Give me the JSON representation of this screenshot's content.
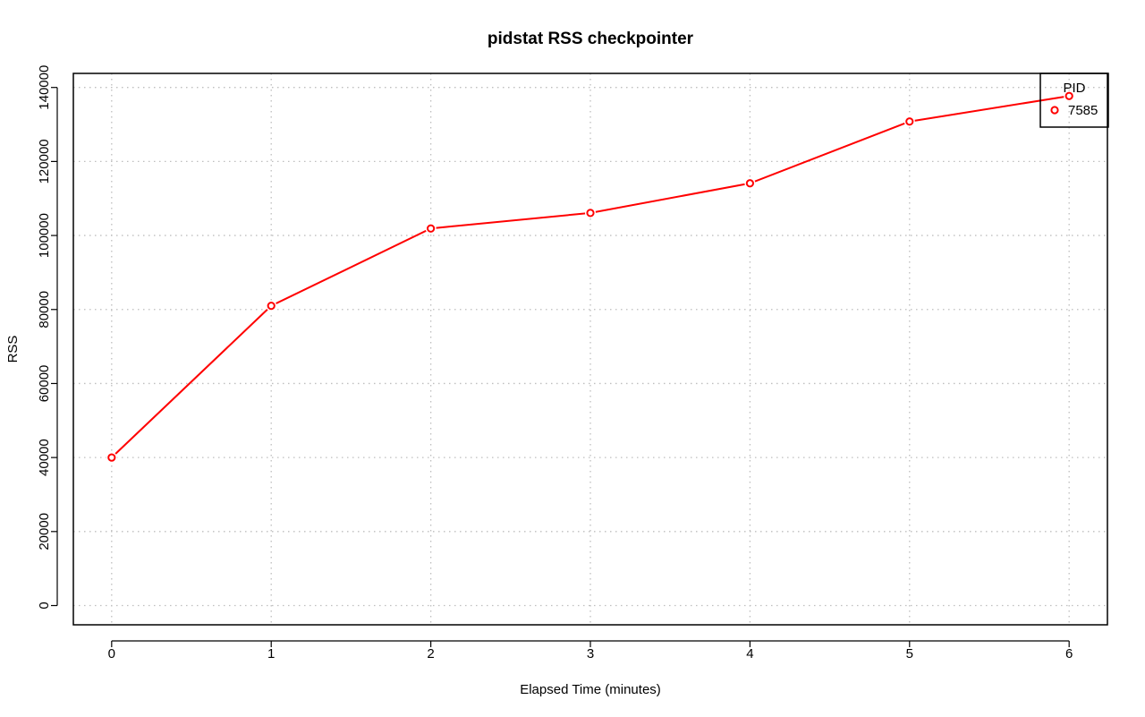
{
  "colors": {
    "series": "#ff0000",
    "grid": "#bebebe",
    "axis": "#000000",
    "background": "#ffffff"
  },
  "chart_data": {
    "type": "line",
    "title": "pidstat RSS checkpointer",
    "xlabel": "Elapsed Time (minutes)",
    "ylabel": "RSS",
    "x": [
      0,
      1,
      2,
      3,
      4,
      5,
      6
    ],
    "series": [
      {
        "name": "7585",
        "values": [
          40000,
          81000,
          101900,
          106100,
          114100,
          130800,
          137700
        ]
      }
    ],
    "xlim": [
      -0.24,
      6.24
    ],
    "ylim": [
      -5200,
      143800
    ],
    "xticks": [
      "0",
      "1",
      "2",
      "3",
      "4",
      "5",
      "6"
    ],
    "yticks": [
      "0",
      "20000",
      "40000",
      "60000",
      "80000",
      "100000",
      "120000",
      "140000"
    ],
    "grid": true,
    "legend": {
      "title": "PID",
      "position": "top-right"
    }
  }
}
